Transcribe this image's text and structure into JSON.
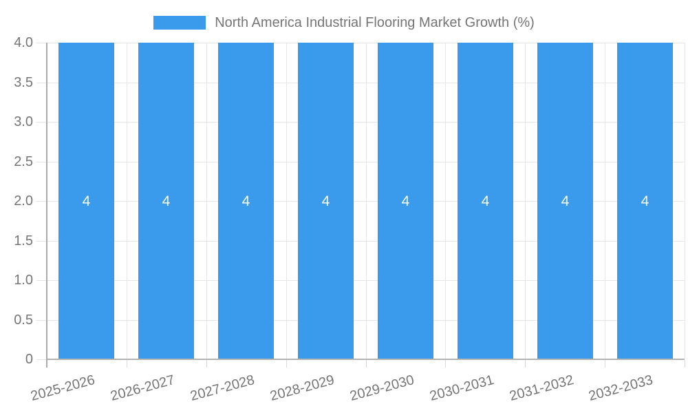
{
  "legend": {
    "items": [
      {
        "label": "North America Industrial Flooring Market Growth (%)",
        "color": "#3A9BEC"
      }
    ]
  },
  "chart_data": {
    "type": "bar",
    "title": "North America Industrial Flooring Market Growth (%)",
    "categories": [
      "2025-2026",
      "2026-2027",
      "2027-2028",
      "2028-2029",
      "2029-2030",
      "2030-2031",
      "2031-2032",
      "2032-2033"
    ],
    "series": [
      {
        "name": "North America Industrial Flooring Market Growth (%)",
        "values": [
          4,
          4,
          4,
          4,
          4,
          4,
          4,
          4
        ]
      }
    ],
    "bar_value_labels": [
      "4",
      "4",
      "4",
      "4",
      "4",
      "4",
      "4",
      "4"
    ],
    "xlabel": "",
    "ylabel": "",
    "ylim": [
      0,
      4
    ],
    "ytick_labels": [
      "4.0",
      "3.5",
      "3.0",
      "2.5",
      "2.0",
      "1.5",
      "1.0",
      "0.5",
      "0"
    ],
    "grid": true,
    "legend_position": "top",
    "colors": {
      "bar": "#3A9BEC",
      "value_label": "#ffffff",
      "axis_text": "#757575",
      "grid_line": "#e6e6e6",
      "axis_line": "#ababab",
      "background": "#ffffff"
    }
  }
}
